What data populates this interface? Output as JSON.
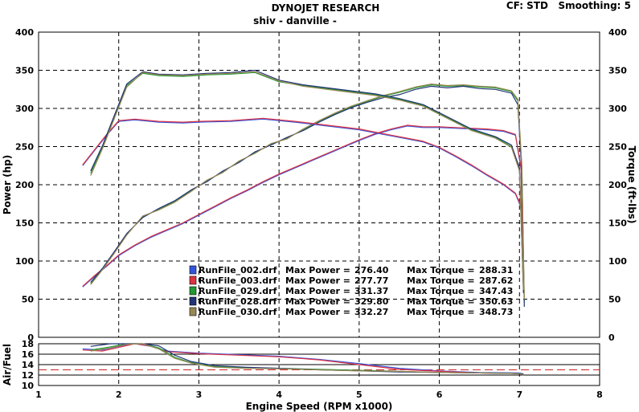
{
  "header": {
    "title": "DYNOJET RESEARCH",
    "subtitle": "shiv - danville -",
    "settings": "CF: STD   Smoothing: 5"
  },
  "chart_data": {
    "type": "line",
    "title": "DYNOJET RESEARCH",
    "xlabel": "Engine Speed (RPM x1000)",
    "ylabel_left": "Power (hp)",
    "ylabel_right": "Torque (ft-lbs)",
    "ylabel_afr": "Air/Fuel",
    "xlim": [
      1,
      8
    ],
    "ylim": [
      0,
      400
    ],
    "afr_ylim": [
      10,
      18
    ],
    "x_ticks": [
      1,
      2,
      3,
      4,
      5,
      6,
      7,
      8
    ],
    "y_ticks": [
      0,
      50,
      100,
      150,
      200,
      250,
      300,
      350,
      400
    ],
    "afr_ticks": [
      10,
      12,
      14,
      16,
      18
    ],
    "afr_reference": 13,
    "grid": true,
    "legend": [
      {
        "file": "RunFile_002.drf",
        "max_power_label": "Max Power =",
        "max_power": "276.40",
        "max_torque_label": "Max Torque =",
        "max_torque": "288.31",
        "color": "#3355dd"
      },
      {
        "file": "RunFile_003.drf",
        "max_power_label": "Max Power =",
        "max_power": "277.77",
        "max_torque_label": "Max Torque =",
        "max_torque": "287.62",
        "color": "#dd3344"
      },
      {
        "file": "RunFile_029.drf",
        "max_power_label": "Max Power =",
        "max_power": "331.37",
        "max_torque_label": "Max Torque =",
        "max_torque": "347.43",
        "color": "#229933"
      },
      {
        "file": "RunFile_028.drf",
        "max_power_label": "Max Power =",
        "max_power": "329.80",
        "max_torque_label": "Max Torque =",
        "max_torque": "350.63",
        "color": "#223377"
      },
      {
        "file": "RunFile_030.drf",
        "max_power_label": "Max Power =",
        "max_power": "332.27",
        "max_torque_label": "Max Torque =",
        "max_torque": "348.73",
        "color": "#998855"
      }
    ],
    "series": [
      {
        "name": "RunFile_002.drf power",
        "color": "#3355dd",
        "x": [
          1.55,
          1.7,
          1.85,
          2.0,
          2.2,
          2.4,
          2.6,
          2.8,
          3.0,
          3.2,
          3.4,
          3.6,
          3.8,
          4.0,
          4.2,
          4.4,
          4.6,
          4.8,
          5.0,
          5.2,
          5.4,
          5.6,
          5.8,
          6.0,
          6.2,
          6.4,
          6.6,
          6.8,
          6.95,
          7.02,
          7.05
        ],
        "y": [
          66,
          80,
          93,
          107,
          120,
          131,
          140,
          149,
          160,
          171,
          182,
          192,
          203,
          213,
          222,
          231,
          240,
          249,
          258,
          266,
          272,
          277,
          275,
          275,
          274,
          273,
          272,
          270,
          265,
          220,
          60
        ]
      },
      {
        "name": "RunFile_003.drf power",
        "color": "#dd3344",
        "x": [
          1.55,
          1.7,
          1.85,
          2.0,
          2.2,
          2.4,
          2.6,
          2.8,
          3.0,
          3.2,
          3.4,
          3.6,
          3.8,
          4.0,
          4.2,
          4.4,
          4.6,
          4.8,
          5.0,
          5.2,
          5.4,
          5.6,
          5.8,
          6.0,
          6.2,
          6.4,
          6.6,
          6.8,
          6.95,
          7.02,
          7.05
        ],
        "y": [
          67,
          81,
          94,
          108,
          121,
          132,
          141,
          150,
          161,
          172,
          183,
          193,
          204,
          214,
          223,
          232,
          241,
          250,
          259,
          267,
          273,
          278,
          276,
          276,
          275,
          274,
          273,
          271,
          266,
          222,
          62
        ]
      },
      {
        "name": "RunFile_029.drf power",
        "color": "#229933",
        "x": [
          1.65,
          1.8,
          1.95,
          2.1,
          2.3,
          2.5,
          2.7,
          2.9,
          3.1,
          3.3,
          3.5,
          3.7,
          3.9,
          4.1,
          4.3,
          4.5,
          4.7,
          4.9,
          5.1,
          5.3,
          5.5,
          5.7,
          5.9,
          6.1,
          6.3,
          6.5,
          6.7,
          6.9,
          6.98,
          7.03,
          7.06
        ],
        "y": [
          70,
          90,
          112,
          135,
          158,
          168,
          178,
          192,
          205,
          217,
          230,
          242,
          253,
          261,
          272,
          283,
          293,
          302,
          309,
          316,
          321,
          327,
          331,
          329,
          330,
          328,
          327,
          322,
          310,
          220,
          45
        ]
      },
      {
        "name": "RunFile_028.drf power",
        "color": "#223377",
        "x": [
          1.65,
          1.8,
          1.95,
          2.1,
          2.3,
          2.5,
          2.7,
          2.9,
          3.1,
          3.3,
          3.5,
          3.7,
          3.9,
          4.1,
          4.3,
          4.5,
          4.7,
          4.9,
          5.1,
          5.3,
          5.5,
          5.7,
          5.9,
          6.1,
          6.3,
          6.5,
          6.7,
          6.9,
          6.98,
          7.03,
          7.06
        ],
        "y": [
          72,
          91,
          113,
          136,
          157,
          169,
          179,
          193,
          204,
          218,
          229,
          243,
          252,
          262,
          271,
          282,
          292,
          301,
          308,
          314,
          318,
          325,
          329,
          327,
          329,
          326,
          325,
          320,
          305,
          215,
          40
        ]
      },
      {
        "name": "RunFile_030.drf power",
        "color": "#998855",
        "x": [
          1.65,
          1.8,
          1.95,
          2.1,
          2.3,
          2.5,
          2.7,
          2.9,
          3.1,
          3.3,
          3.5,
          3.7,
          3.9,
          4.1,
          4.3,
          4.5,
          4.7,
          4.9,
          5.1,
          5.3,
          5.5,
          5.7,
          5.9,
          6.1,
          6.3,
          6.5,
          6.7,
          6.9,
          6.98,
          7.03,
          7.06
        ],
        "y": [
          69,
          89,
          111,
          134,
          159,
          167,
          177,
          191,
          206,
          216,
          231,
          241,
          254,
          260,
          273,
          284,
          294,
          303,
          310,
          317,
          322,
          328,
          332,
          330,
          331,
          329,
          328,
          323,
          312,
          225,
          50
        ]
      },
      {
        "name": "RunFile_002.drf torque",
        "color": "#3355dd",
        "x": [
          1.55,
          1.7,
          1.85,
          2.0,
          2.2,
          2.5,
          2.8,
          3.0,
          3.4,
          3.8,
          4.2,
          4.6,
          5.0,
          5.4,
          5.8,
          6.0,
          6.2,
          6.4,
          6.6,
          6.8,
          6.95,
          7.02
        ],
        "y": [
          225,
          245,
          265,
          283,
          285,
          282,
          281,
          282,
          283,
          286,
          282,
          277,
          272,
          264,
          256,
          248,
          237,
          225,
          212,
          200,
          188,
          170
        ]
      },
      {
        "name": "RunFile_003.drf torque",
        "color": "#dd3344",
        "x": [
          1.55,
          1.7,
          1.85,
          2.0,
          2.2,
          2.5,
          2.8,
          3.0,
          3.4,
          3.8,
          4.2,
          4.6,
          5.0,
          5.4,
          5.8,
          6.0,
          6.2,
          6.4,
          6.6,
          6.8,
          6.95,
          7.02
        ],
        "y": [
          226,
          246,
          266,
          284,
          286,
          283,
          282,
          283,
          284,
          287,
          283,
          278,
          273,
          265,
          257,
          249,
          238,
          226,
          213,
          201,
          189,
          172
        ]
      },
      {
        "name": "RunFile_029.drf torque",
        "color": "#229933",
        "x": [
          1.65,
          1.8,
          1.95,
          2.1,
          2.3,
          2.5,
          2.8,
          3.1,
          3.4,
          3.7,
          4.0,
          4.3,
          4.6,
          4.9,
          5.2,
          5.5,
          5.8,
          6.1,
          6.4,
          6.7,
          6.9,
          7.0,
          7.05
        ],
        "y": [
          215,
          250,
          290,
          330,
          346,
          343,
          342,
          344,
          345,
          347,
          335,
          330,
          326,
          322,
          318,
          312,
          304,
          288,
          272,
          262,
          250,
          220,
          60
        ]
      },
      {
        "name": "RunFile_028.drf torque",
        "color": "#223377",
        "x": [
          1.65,
          1.8,
          1.95,
          2.1,
          2.3,
          2.5,
          2.8,
          3.1,
          3.4,
          3.7,
          4.0,
          4.3,
          4.6,
          4.9,
          5.2,
          5.5,
          5.8,
          6.1,
          6.4,
          6.7,
          6.9,
          7.0,
          7.05
        ],
        "y": [
          218,
          252,
          292,
          332,
          348,
          345,
          344,
          346,
          347,
          350,
          337,
          331,
          327,
          323,
          319,
          313,
          305,
          289,
          273,
          263,
          252,
          222,
          58
        ]
      },
      {
        "name": "RunFile_030.drf torque",
        "color": "#998855",
        "x": [
          1.65,
          1.8,
          1.95,
          2.1,
          2.3,
          2.5,
          2.8,
          3.1,
          3.4,
          3.7,
          4.0,
          4.3,
          4.6,
          4.9,
          5.2,
          5.5,
          5.8,
          6.1,
          6.4,
          6.7,
          6.9,
          7.0,
          7.05
        ],
        "y": [
          212,
          248,
          288,
          328,
          347,
          344,
          343,
          345,
          346,
          348,
          336,
          329,
          325,
          321,
          317,
          311,
          303,
          287,
          271,
          261,
          249,
          218,
          62
        ]
      }
    ],
    "afr_series": [
      {
        "name": "RunFile_002.drf afr",
        "color": "#3355dd",
        "x": [
          1.55,
          1.8,
          2.0,
          2.2,
          2.4,
          2.6,
          3.0,
          3.5,
          4.0,
          4.5,
          5.0,
          5.5,
          6.0,
          6.5,
          7.0,
          7.05
        ],
        "y": [
          17.0,
          16.8,
          17.5,
          18.0,
          17.5,
          16.6,
          16.2,
          15.9,
          15.6,
          15.0,
          14.2,
          13.3,
          12.8,
          12.5,
          12.4,
          12.2
        ]
      },
      {
        "name": "RunFile_003.drf afr",
        "color": "#dd3344",
        "x": [
          1.55,
          1.8,
          2.0,
          2.2,
          2.4,
          2.6,
          3.0,
          3.5,
          4.0,
          4.5,
          5.0,
          5.5,
          6.0,
          6.5,
          7.0,
          7.05
        ],
        "y": [
          16.8,
          16.6,
          17.3,
          18.0,
          17.6,
          16.5,
          16.1,
          15.8,
          15.5,
          14.9,
          14.0,
          13.1,
          12.7,
          12.4,
          12.3,
          12.1
        ]
      },
      {
        "name": "RunFile_029.drf afr",
        "color": "#229933",
        "x": [
          1.65,
          1.9,
          2.1,
          2.3,
          2.5,
          2.7,
          2.9,
          3.2,
          3.6,
          4.0,
          4.5,
          5.0,
          5.5,
          6.0,
          6.5,
          7.0,
          7.05
        ],
        "y": [
          16.8,
          17.4,
          18.0,
          18.0,
          17.2,
          15.4,
          14.4,
          13.6,
          13.4,
          13.3,
          13.1,
          12.9,
          12.7,
          12.5,
          12.4,
          12.3,
          12.1
        ]
      },
      {
        "name": "RunFile_028.drf afr",
        "color": "#223377",
        "x": [
          1.65,
          1.9,
          2.1,
          2.3,
          2.5,
          2.7,
          2.9,
          3.2,
          3.6,
          4.0,
          4.5,
          5.0,
          5.5,
          6.0,
          6.5,
          7.0,
          7.05
        ],
        "y": [
          17.5,
          18.0,
          18.0,
          18.0,
          17.6,
          15.8,
          14.6,
          13.8,
          13.5,
          13.3,
          13.0,
          12.8,
          12.6,
          12.5,
          12.4,
          12.3,
          12.2
        ]
      },
      {
        "name": "RunFile_030.drf afr",
        "color": "#998855",
        "x": [
          1.65,
          1.9,
          2.1,
          2.3,
          2.5,
          2.7,
          2.9,
          3.2,
          3.6,
          4.0,
          4.5,
          5.0,
          5.5,
          6.0,
          6.5,
          7.0,
          7.05
        ],
        "y": [
          16.6,
          17.2,
          17.9,
          18.0,
          17.0,
          15.2,
          14.3,
          13.5,
          13.3,
          13.2,
          13.0,
          12.8,
          12.7,
          12.5,
          12.4,
          12.3,
          12.0
        ]
      }
    ]
  }
}
